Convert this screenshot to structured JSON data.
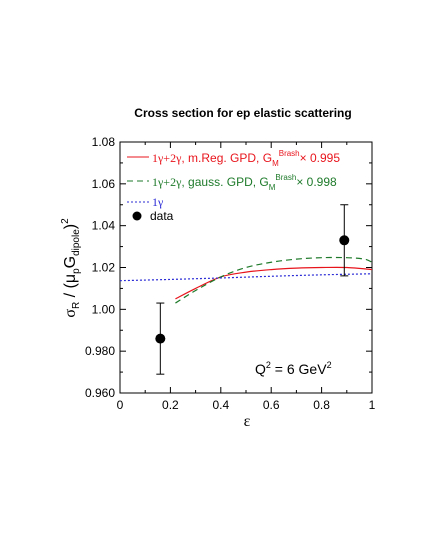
{
  "chart_data": {
    "type": "line",
    "title": "Cross section for ep elastic scattering",
    "xlabel": "ε",
    "ylabel": {
      "sigma": "σ",
      "sigma_sub": "R",
      "slash": " / (μ",
      "mu_sub": "p",
      "G": "G",
      "G_sub": "dipole",
      "close": ")",
      "power": "2"
    },
    "xlim": [
      0,
      1
    ],
    "ylim": [
      0.96,
      1.08
    ],
    "xticks": [
      0,
      0.2,
      0.4,
      0.6,
      0.8,
      1
    ],
    "xtick_labels": [
      "0",
      "0.2",
      "0.4",
      "0.6",
      "0.8",
      "1"
    ],
    "yticks": [
      0.96,
      0.98,
      1.0,
      1.02,
      1.04,
      1.06,
      1.08
    ],
    "ytick_labels": [
      "0.960",
      "0.980",
      "1.00",
      "1.02",
      "1.04",
      "1.06",
      "1.08"
    ],
    "grid": false,
    "legend_position": "top-left",
    "annotation": {
      "q": "Q",
      "sup": "2",
      "mid": " = 6 GeV",
      "sup2": "2"
    },
    "series": [
      {
        "key": "mreg",
        "legend": {
          "prefix": "1γ+2γ",
          "text": ", m.Reg. GPD, G",
          "sub": "M",
          "sup": "Brash",
          "factor": "× 0.995"
        },
        "style": "solid",
        "color": "#e8141c",
        "x": [
          0.22,
          0.3,
          0.4,
          0.5,
          0.6,
          0.7,
          0.8,
          0.9,
          1.0
        ],
        "y": [
          1.005,
          1.01,
          1.0155,
          1.0178,
          1.019,
          1.0197,
          1.02,
          1.02,
          1.019
        ]
      },
      {
        "key": "gauss",
        "legend": {
          "prefix": "1γ+2γ",
          "text": ", gauss. GPD, G",
          "sub": "M",
          "sup": "Brash",
          "factor": "× 0.998"
        },
        "style": "dashed",
        "color": "#1e7a2a",
        "x": [
          0.22,
          0.3,
          0.4,
          0.5,
          0.6,
          0.7,
          0.8,
          0.9,
          0.97,
          1.0
        ],
        "y": [
          1.003,
          1.009,
          1.0155,
          1.02,
          1.0225,
          1.024,
          1.0247,
          1.0247,
          1.024,
          1.0225
        ]
      },
      {
        "key": "onegamma",
        "legend": {
          "prefix": "1γ"
        },
        "style": "dotted",
        "color": "#2b2bd6",
        "x": [
          0.0,
          0.2,
          0.4,
          0.6,
          0.8,
          1.0
        ],
        "y": [
          1.0137,
          1.0143,
          1.015,
          1.0158,
          1.0165,
          1.017
        ]
      },
      {
        "key": "data",
        "type": "scatter",
        "legend": {
          "text": "data"
        },
        "color": "#000000",
        "points": [
          {
            "x": 0.16,
            "y": 0.986,
            "ylo": 0.969,
            "yhi": 1.003
          },
          {
            "x": 0.89,
            "y": 1.033,
            "ylo": 1.016,
            "yhi": 1.05
          }
        ]
      }
    ]
  }
}
